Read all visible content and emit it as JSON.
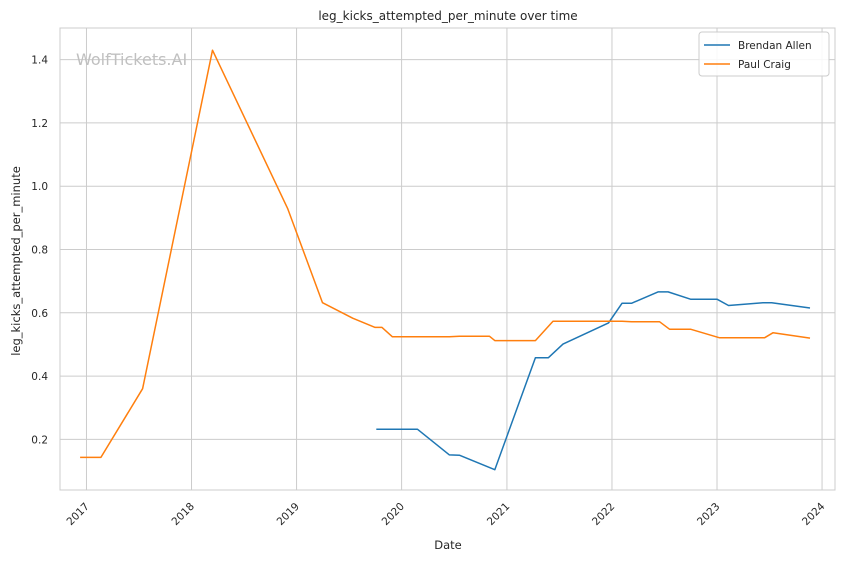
{
  "chart_data": {
    "type": "line",
    "title": "leg_kicks_attempted_per_minute over time",
    "xlabel": "Date",
    "ylabel": "leg_kicks_attempted_per_minute",
    "watermark": "WolfTickets.AI",
    "xlim": [
      "2016-10-01",
      "2024-02-15"
    ],
    "ylim": [
      0.04,
      1.5
    ],
    "x_ticks": [
      "2017",
      "2018",
      "2019",
      "2020",
      "2021",
      "2022",
      "2023",
      "2024"
    ],
    "y_ticks": [
      "0.2",
      "0.4",
      "0.6",
      "0.8",
      "1.0",
      "1.2",
      "1.4"
    ],
    "grid": true,
    "legend_position": "top-right",
    "series": [
      {
        "name": "Brendan Allen",
        "color": "#1f77b4",
        "points": [
          [
            "2019-10-05",
            0.232
          ],
          [
            "2020-02-25",
            0.232
          ],
          [
            "2020-06-15",
            0.151
          ],
          [
            "2020-07-20",
            0.15
          ],
          [
            "2020-11-20",
            0.104
          ],
          [
            "2021-04-10",
            0.458
          ],
          [
            "2021-05-25",
            0.458
          ],
          [
            "2021-07-15",
            0.501
          ],
          [
            "2021-12-20",
            0.568
          ],
          [
            "2022-02-05",
            0.63
          ],
          [
            "2022-03-10",
            0.63
          ],
          [
            "2022-06-10",
            0.666
          ],
          [
            "2022-07-15",
            0.666
          ],
          [
            "2022-10-01",
            0.643
          ],
          [
            "2023-01-01",
            0.643
          ],
          [
            "2023-02-10",
            0.623
          ],
          [
            "2023-06-10",
            0.632
          ],
          [
            "2023-07-10",
            0.632
          ],
          [
            "2023-11-20",
            0.615
          ]
        ]
      },
      {
        "name": "Paul Craig",
        "color": "#ff7f0e",
        "points": [
          [
            "2016-12-10",
            0.143
          ],
          [
            "2017-02-20",
            0.143
          ],
          [
            "2017-07-15",
            0.36
          ],
          [
            "2018-03-15",
            1.43
          ],
          [
            "2018-12-01",
            0.93
          ],
          [
            "2019-04-01",
            0.632
          ],
          [
            "2019-07-15",
            0.583
          ],
          [
            "2019-10-01",
            0.554
          ],
          [
            "2019-10-25",
            0.554
          ],
          [
            "2019-11-30",
            0.524
          ],
          [
            "2020-06-15",
            0.524
          ],
          [
            "2020-07-20",
            0.526
          ],
          [
            "2020-11-01",
            0.526
          ],
          [
            "2020-11-20",
            0.512
          ],
          [
            "2021-04-10",
            0.512
          ],
          [
            "2021-06-10",
            0.573
          ],
          [
            "2022-02-05",
            0.573
          ],
          [
            "2022-03-10",
            0.572
          ],
          [
            "2022-06-15",
            0.572
          ],
          [
            "2022-07-20",
            0.548
          ],
          [
            "2022-10-01",
            0.548
          ],
          [
            "2023-01-10",
            0.521
          ],
          [
            "2023-06-15",
            0.521
          ],
          [
            "2023-07-15",
            0.537
          ],
          [
            "2023-11-20",
            0.52
          ]
        ]
      }
    ]
  }
}
